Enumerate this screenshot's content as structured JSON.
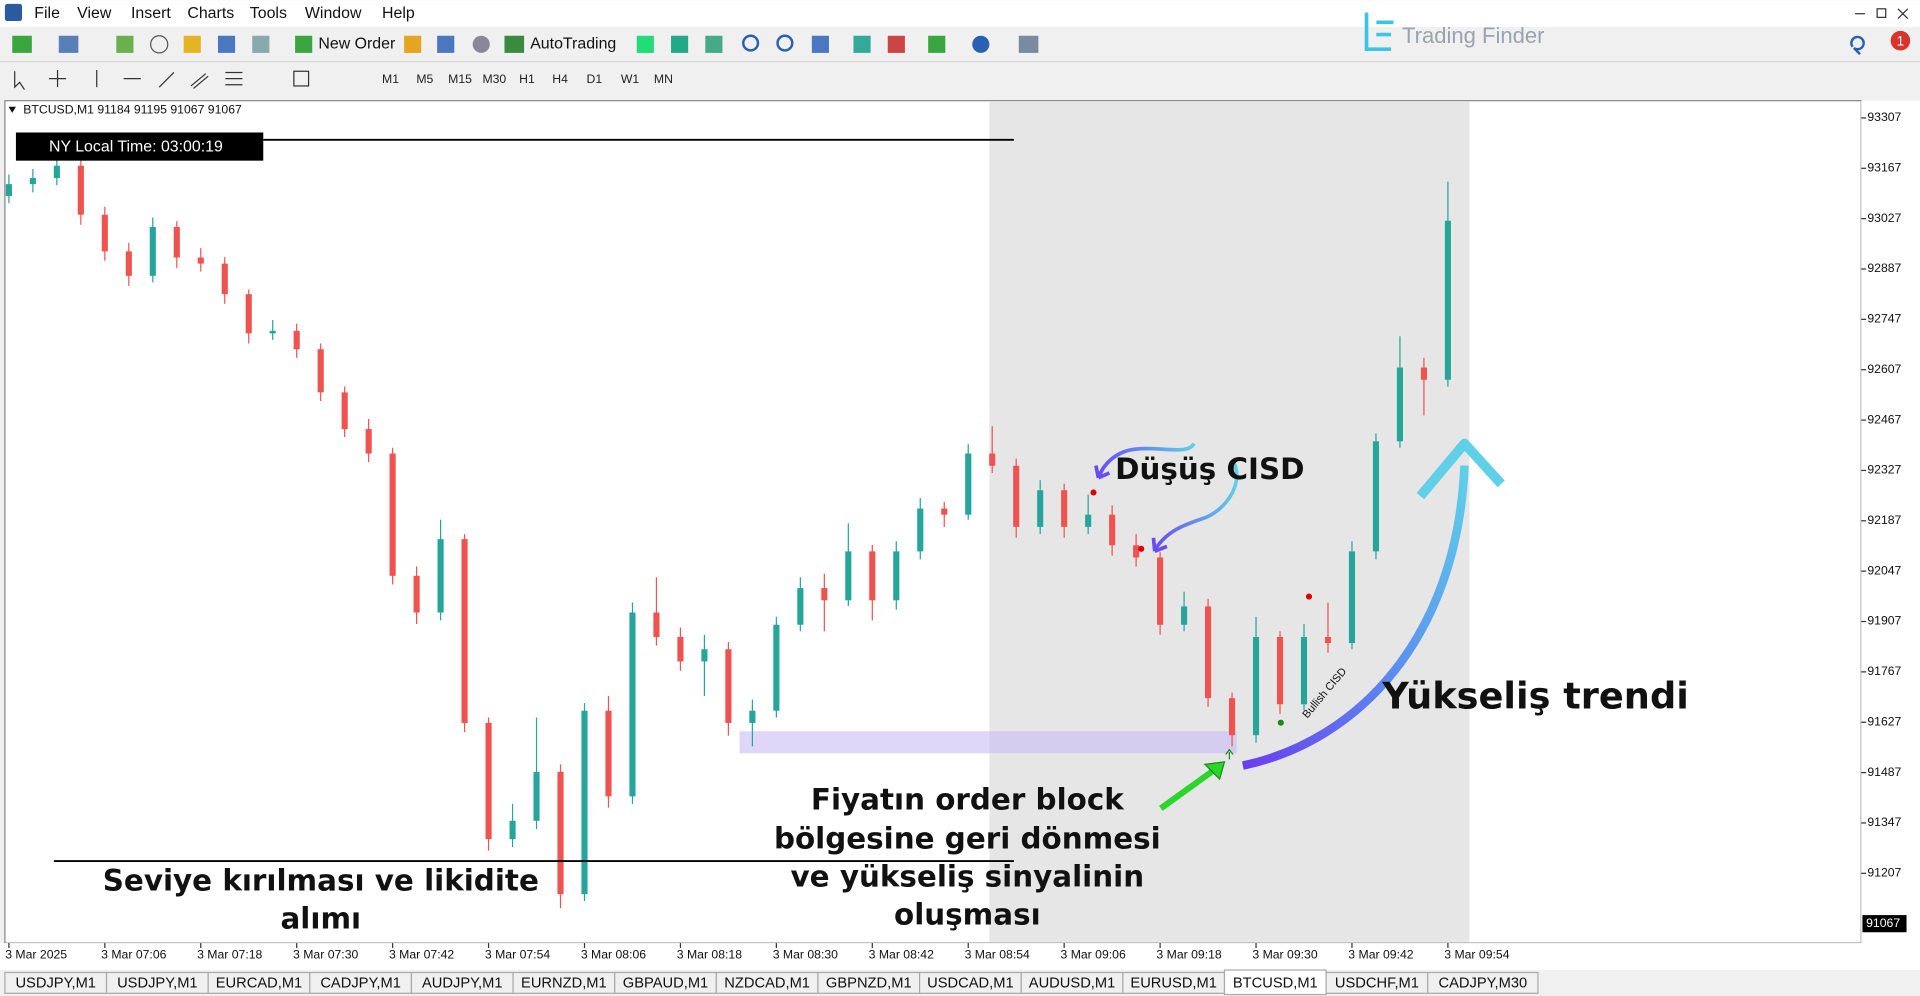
{
  "menu": [
    "File",
    "View",
    "Insert",
    "Charts",
    "Tools",
    "Window",
    "Help"
  ],
  "toolbar": {
    "new_order": "New Order",
    "auto_trading": "AutoTrading"
  },
  "timeframes": [
    "M1",
    "M5",
    "M15",
    "M30",
    "H1",
    "H4",
    "D1",
    "W1",
    "MN"
  ],
  "logo": "Trading Finder",
  "notification_count": "1",
  "chart_data": {
    "type": "candlestick",
    "symbol_header": "BTCUSD,M1  91184 91195 91067 91067",
    "clock": "NY Local Time: 03:00:19",
    "up_color": "#26a69a",
    "down_color": "#ef5350",
    "x": [
      0,
      3,
      6,
      9,
      12,
      15,
      18,
      21,
      24,
      27,
      30,
      33,
      36,
      39,
      42,
      45,
      48,
      51,
      54,
      57,
      60,
      63,
      66,
      69,
      72,
      75,
      78,
      81,
      84,
      87,
      90,
      93,
      96,
      99,
      102,
      105,
      108,
      111,
      114,
      117,
      120,
      123,
      126,
      129,
      132,
      135,
      138,
      141,
      144,
      147,
      150,
      153,
      156,
      159,
      162,
      165,
      168,
      171,
      174,
      177,
      180
    ],
    "ohlc": [
      [
        93090,
        93150,
        93070,
        93123
      ],
      [
        93123,
        93165,
        93100,
        93140
      ],
      [
        93140,
        93200,
        93120,
        93174
      ],
      [
        93174,
        93190,
        93010,
        93038
      ],
      [
        93038,
        93060,
        92910,
        92936
      ],
      [
        92936,
        92960,
        92840,
        92868
      ],
      [
        92868,
        93030,
        92850,
        93004
      ],
      [
        93004,
        93020,
        92890,
        92919
      ],
      [
        92919,
        92945,
        92880,
        92902
      ],
      [
        92902,
        92920,
        92790,
        92817
      ],
      [
        92817,
        92830,
        92680,
        92708
      ],
      [
        92708,
        92745,
        92690,
        92715
      ],
      [
        92715,
        92735,
        92640,
        92664
      ],
      [
        92664,
        92680,
        92520,
        92544
      ],
      [
        92544,
        92560,
        92420,
        92442
      ],
      [
        92442,
        92470,
        92350,
        92374
      ],
      [
        92374,
        92390,
        92010,
        92034
      ],
      [
        92034,
        92060,
        91900,
        91932
      ],
      [
        91932,
        92190,
        91910,
        92136
      ],
      [
        92136,
        92150,
        91600,
        91625
      ],
      [
        91625,
        91640,
        91270,
        91302
      ],
      [
        91302,
        91400,
        91280,
        91353
      ],
      [
        91353,
        91640,
        91330,
        91489
      ],
      [
        91489,
        91510,
        91110,
        91149
      ],
      [
        91149,
        91680,
        91130,
        91659
      ],
      [
        91659,
        91700,
        91390,
        91421
      ],
      [
        91421,
        91960,
        91400,
        91932
      ],
      [
        91932,
        92030,
        91840,
        91864
      ],
      [
        91864,
        91890,
        91770,
        91796
      ],
      [
        91796,
        91870,
        91700,
        91830
      ],
      [
        91830,
        91850,
        91590,
        91625
      ],
      [
        91625,
        91690,
        91560,
        91659
      ],
      [
        91659,
        91920,
        91640,
        91898
      ],
      [
        91898,
        92030,
        91880,
        92000
      ],
      [
        92000,
        92040,
        91880,
        91966
      ],
      [
        91966,
        92180,
        91950,
        92102
      ],
      [
        92102,
        92120,
        91910,
        91966
      ],
      [
        91966,
        92130,
        91940,
        92102
      ],
      [
        92102,
        92250,
        92080,
        92221
      ],
      [
        92221,
        92240,
        92170,
        92204
      ],
      [
        92204,
        92400,
        92190,
        92374
      ],
      [
        92374,
        92450,
        92320,
        92340
      ],
      [
        92340,
        92360,
        92140,
        92170
      ],
      [
        92170,
        92300,
        92150,
        92272
      ],
      [
        92272,
        92290,
        92140,
        92170
      ],
      [
        92170,
        92260,
        92150,
        92204
      ],
      [
        92204,
        92230,
        92090,
        92119
      ],
      [
        92119,
        92150,
        92060,
        92085
      ],
      [
        92085,
        92100,
        91870,
        91898
      ],
      [
        91898,
        91990,
        91880,
        91949
      ],
      [
        91949,
        91970,
        91670,
        91694
      ],
      [
        91694,
        91710,
        91560,
        91591
      ],
      [
        91591,
        91920,
        91570,
        91864
      ],
      [
        91864,
        91880,
        91650,
        91677
      ],
      [
        91677,
        91900,
        91660,
        91864
      ],
      [
        91864,
        91960,
        91820,
        91847
      ],
      [
        91847,
        92130,
        91830,
        92102
      ],
      [
        92102,
        92430,
        92080,
        92408
      ],
      [
        92408,
        92700,
        92390,
        92613
      ],
      [
        92613,
        92640,
        92480,
        92579
      ],
      [
        92579,
        93130,
        92560,
        93021
      ]
    ],
    "xlim": [
      -0.5,
      231.7
    ],
    "xticks": [
      {
        "value": 0,
        "label": "3 Mar 2025"
      },
      {
        "value": 12,
        "label": "3 Mar 07:06"
      },
      {
        "value": 24,
        "label": "3 Mar 07:18"
      },
      {
        "value": 36,
        "label": "3 Mar 07:30"
      },
      {
        "value": 48,
        "label": "3 Mar 07:42"
      },
      {
        "value": 60,
        "label": "3 Mar 07:54"
      },
      {
        "value": 72,
        "label": "3 Mar 08:06"
      },
      {
        "value": 84,
        "label": "3 Mar 08:18"
      },
      {
        "value": 96,
        "label": "3 Mar 08:30"
      },
      {
        "value": 108,
        "label": "3 Mar 08:42"
      },
      {
        "value": 120,
        "label": "3 Mar 08:54"
      },
      {
        "value": 132,
        "label": "3 Mar 09:06"
      },
      {
        "value": 144,
        "label": "3 Mar 09:18"
      },
      {
        "value": 156,
        "label": "3 Mar 09:30"
      },
      {
        "value": 168,
        "label": "3 Mar 09:42"
      },
      {
        "value": 180,
        "label": "3 Mar 09:54"
      }
    ],
    "ylim": [
      91013,
      93355
    ],
    "yticks": [
      93307,
      93167,
      93027,
      92887,
      92747,
      92607,
      92467,
      92327,
      92187,
      92047,
      91907,
      91767,
      91627,
      91487,
      91347,
      91207
    ],
    "current_price": 91067,
    "annotations": {
      "bearish_cisd": "Düşüş CISD",
      "uptrend": "Yükseliş trendi",
      "bullish_cisd": "Bullish CISD",
      "order_block_return": [
        "Fiyatın order block",
        "bölgesine geri dönmesi",
        "ve yükseliş sinyalinin",
        "oluşması"
      ],
      "liquidity": [
        "Seviye kırılması ve likidite",
        "alımı"
      ]
    }
  },
  "tabs": [
    "USDJPY,M1",
    "USDJPY,M1",
    "EURCAD,M1",
    "CADJPY,M1",
    "AUDJPY,M1",
    "EURNZD,M1",
    "GBPAUD,M1",
    "NZDCAD,M1",
    "GBPNZD,M1",
    "USDCAD,M1",
    "AUDUSD,M1",
    "EURUSD,M1",
    "BTCUSD,M1",
    "USDCHF,M1",
    "CADJPY,M30"
  ],
  "active_tab": 12
}
